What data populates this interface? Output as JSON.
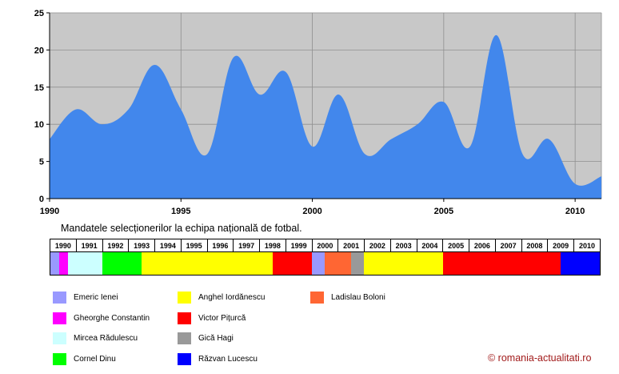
{
  "chart_data": {
    "type": "area",
    "x": [
      1990,
      1991,
      1992,
      1993,
      1994,
      1995,
      1996,
      1997,
      1998,
      1999,
      2000,
      2001,
      2002,
      2003,
      2004,
      2005,
      2006,
      2007,
      2008,
      2009,
      2010,
      2011
    ],
    "y": [
      8,
      12,
      10,
      12,
      18,
      12,
      6,
      19,
      14,
      17,
      7,
      14,
      6,
      8,
      10,
      13,
      7,
      22,
      6,
      8,
      2,
      3
    ],
    "xlim": [
      1990,
      2011
    ],
    "ylim": [
      0,
      25
    ],
    "x_ticks": [
      1990,
      1995,
      2000,
      2005,
      2010
    ],
    "y_ticks": [
      0,
      5,
      10,
      15,
      20,
      25
    ],
    "grid": true,
    "fill_color": "#4287ec",
    "plot_bg": "#c8c8c8"
  },
  "caption": "Mandatele selecționerilor la echipa națională de fotbal.",
  "years": [
    "1990",
    "1991",
    "1992",
    "1993",
    "1994",
    "1995",
    "1996",
    "1997",
    "1998",
    "1999",
    "2000",
    "2001",
    "2002",
    "2003",
    "2004",
    "2005",
    "2006",
    "2007",
    "2008",
    "2009",
    "2010"
  ],
  "segments": [
    {
      "coach": "Emeric Ienei",
      "span": 0.33
    },
    {
      "coach": "Gheorghe Constantin",
      "span": 0.33
    },
    {
      "coach": "Mircea Rădulescu",
      "span": 1.34
    },
    {
      "coach": "Cornel Dinu",
      "span": 1.5
    },
    {
      "coach": "Anghel Iordănescu",
      "span": 5.0
    },
    {
      "coach": "Victor Pițurcă",
      "span": 1.5
    },
    {
      "coach": "Emeric Ienei",
      "span": 0.5
    },
    {
      "coach": "Ladislau Boloni",
      "span": 1.0
    },
    {
      "coach": "Gică Hagi",
      "span": 0.5
    },
    {
      "coach": "Anghel Iordănescu",
      "span": 3.0
    },
    {
      "coach": "Victor Pițurcă",
      "span": 4.5
    },
    {
      "coach": "Răzvan Lucescu",
      "span": 1.5
    }
  ],
  "legend": [
    {
      "name": "Emeric Ienei",
      "color": "#9999ff"
    },
    {
      "name": "Gheorghe Constantin",
      "color": "#ff00ff"
    },
    {
      "name": "Mircea Rădulescu",
      "color": "#ccffff"
    },
    {
      "name": "Cornel Dinu",
      "color": "#00ff00"
    },
    {
      "name": "Anghel Iordănescu",
      "color": "#ffff00"
    },
    {
      "name": "Victor Pițurcă",
      "color": "#ff0000"
    },
    {
      "name": "Gică Hagi",
      "color": "#999999"
    },
    {
      "name": "Răzvan Lucescu",
      "color": "#0000ff"
    },
    {
      "name": "Ladislau Boloni",
      "color": "#ff6633"
    }
  ],
  "copyright": "© romania-actualitati.ro"
}
